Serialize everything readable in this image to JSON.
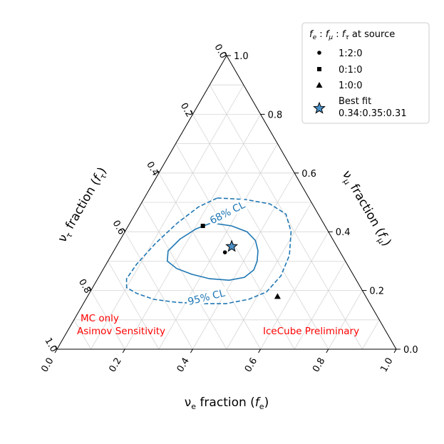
{
  "chart_data": {
    "type": "ternary",
    "axes": {
      "bottom": {
        "label_parts": [
          "ν",
          "e",
          " fraction (",
          "f",
          "e",
          ")"
        ],
        "ticks": [
          "0.0",
          "0.2",
          "0.4",
          "0.6",
          "0.8",
          "1.0"
        ]
      },
      "right": {
        "label_parts": [
          "ν",
          "μ",
          " fraction (",
          "f",
          "μ",
          ")"
        ],
        "ticks": [
          "0.0",
          "0.2",
          "0.4",
          "0.6",
          "0.8",
          "1.0"
        ]
      },
      "left": {
        "label_parts": [
          "ν",
          "τ",
          " fraction (",
          "f",
          "τ",
          ")"
        ],
        "ticks": [
          "1.0",
          "0.8",
          "0.6",
          "0.4",
          "0.2",
          "0.0"
        ]
      },
      "grid": true,
      "grid_step": 0.1
    },
    "legend": {
      "title_parts": [
        "f",
        "e",
        " : ",
        "f",
        "μ",
        " : ",
        "f",
        "τ",
        " at source"
      ],
      "placement": "top-right",
      "entries": [
        {
          "marker": "circle",
          "label": "1:2:0"
        },
        {
          "marker": "square",
          "label": "0:1:0"
        },
        {
          "marker": "triangle",
          "label": "1:0:0"
        },
        {
          "marker": "star",
          "label": "Best fit",
          "label2": "0.34:0.35:0.31"
        }
      ]
    },
    "points": [
      {
        "name": "1:2:0",
        "marker": "circle",
        "fe": 0.33,
        "fmu": 0.33,
        "ftau": 0.34
      },
      {
        "name": "0:1:0",
        "marker": "square",
        "fe": 0.22,
        "fmu": 0.42,
        "ftau": 0.36
      },
      {
        "name": "1:0:0",
        "marker": "triangle",
        "fe": 0.56,
        "fmu": 0.18,
        "ftau": 0.26
      },
      {
        "name": "Best fit",
        "marker": "star",
        "fe": 0.34,
        "fmu": 0.35,
        "ftau": 0.31
      }
    ],
    "contours": [
      {
        "label": "68% CL",
        "style": "solid",
        "color": "#1f77b4",
        "points": [
          [
            0.24,
            0.43
          ],
          [
            0.305,
            0.42
          ],
          [
            0.36,
            0.4
          ],
          [
            0.4,
            0.37
          ],
          [
            0.425,
            0.335
          ],
          [
            0.44,
            0.3
          ],
          [
            0.445,
            0.27
          ],
          [
            0.43,
            0.245
          ],
          [
            0.39,
            0.235
          ],
          [
            0.33,
            0.24
          ],
          [
            0.27,
            0.255
          ],
          [
            0.215,
            0.275
          ],
          [
            0.175,
            0.3
          ],
          [
            0.16,
            0.335
          ],
          [
            0.175,
            0.375
          ],
          [
            0.205,
            0.41
          ],
          [
            0.24,
            0.43
          ]
        ]
      },
      {
        "label": "95% CL",
        "style": "dashed",
        "color": "#1f77b4",
        "points": [
          [
            0.215,
            0.515
          ],
          [
            0.3,
            0.51
          ],
          [
            0.38,
            0.495
          ],
          [
            0.445,
            0.46
          ],
          [
            0.49,
            0.4
          ],
          [
            0.525,
            0.32
          ],
          [
            0.535,
            0.25
          ],
          [
            0.52,
            0.195
          ],
          [
            0.48,
            0.17
          ],
          [
            0.42,
            0.155
          ],
          [
            0.35,
            0.155
          ],
          [
            0.27,
            0.16
          ],
          [
            0.2,
            0.17
          ],
          [
            0.14,
            0.19
          ],
          [
            0.1,
            0.21
          ],
          [
            0.085,
            0.24
          ],
          [
            0.09,
            0.29
          ],
          [
            0.11,
            0.36
          ],
          [
            0.14,
            0.43
          ],
          [
            0.175,
            0.485
          ],
          [
            0.215,
            0.515
          ]
        ]
      }
    ],
    "annotations": [
      {
        "text": "MC only"
      },
      {
        "text": "Asimov Sensitivity"
      },
      {
        "text": "IceCube Preliminary"
      }
    ]
  }
}
